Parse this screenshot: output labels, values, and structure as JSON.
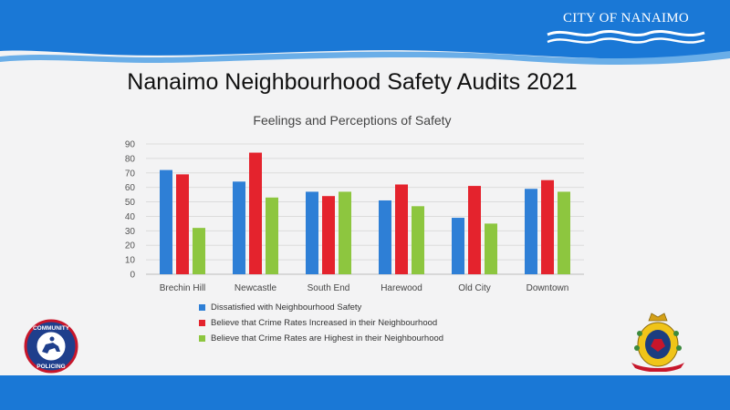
{
  "slide": {
    "title": "Nanaimo Neighbourhood Safety Audits 2021",
    "city_logo_text": "CITY OF NANAIMO",
    "badge_top_text": "COMMUNITY",
    "badge_bottom_text": "POLICING",
    "brand_blue": "#1a78d6"
  },
  "chart_data": {
    "type": "bar",
    "title": "Feelings and Perceptions of Safety",
    "categories": [
      "Brechin Hill",
      "Newcastle",
      "South End",
      "Harewood",
      "Old City",
      "Downtown"
    ],
    "series": [
      {
        "name": "Dissatisfied with Neighbourhood Safety",
        "color": "#2e7fd6",
        "values": [
          72,
          64,
          57,
          51,
          39,
          59
        ]
      },
      {
        "name": "Believe that Crime Rates Increased in their Neighbourhood",
        "color": "#e4232d",
        "values": [
          69,
          84,
          54,
          62,
          61,
          65
        ]
      },
      {
        "name": "Believe that Crime Rates are Highest in their Neighbourhood",
        "color": "#8dc63f",
        "values": [
          32,
          53,
          57,
          47,
          35,
          57
        ]
      }
    ],
    "ylim": [
      0,
      90
    ],
    "yticks": [
      0,
      10,
      20,
      30,
      40,
      50,
      60,
      70,
      80,
      90
    ],
    "grid": true,
    "legend_position": "bottom"
  }
}
